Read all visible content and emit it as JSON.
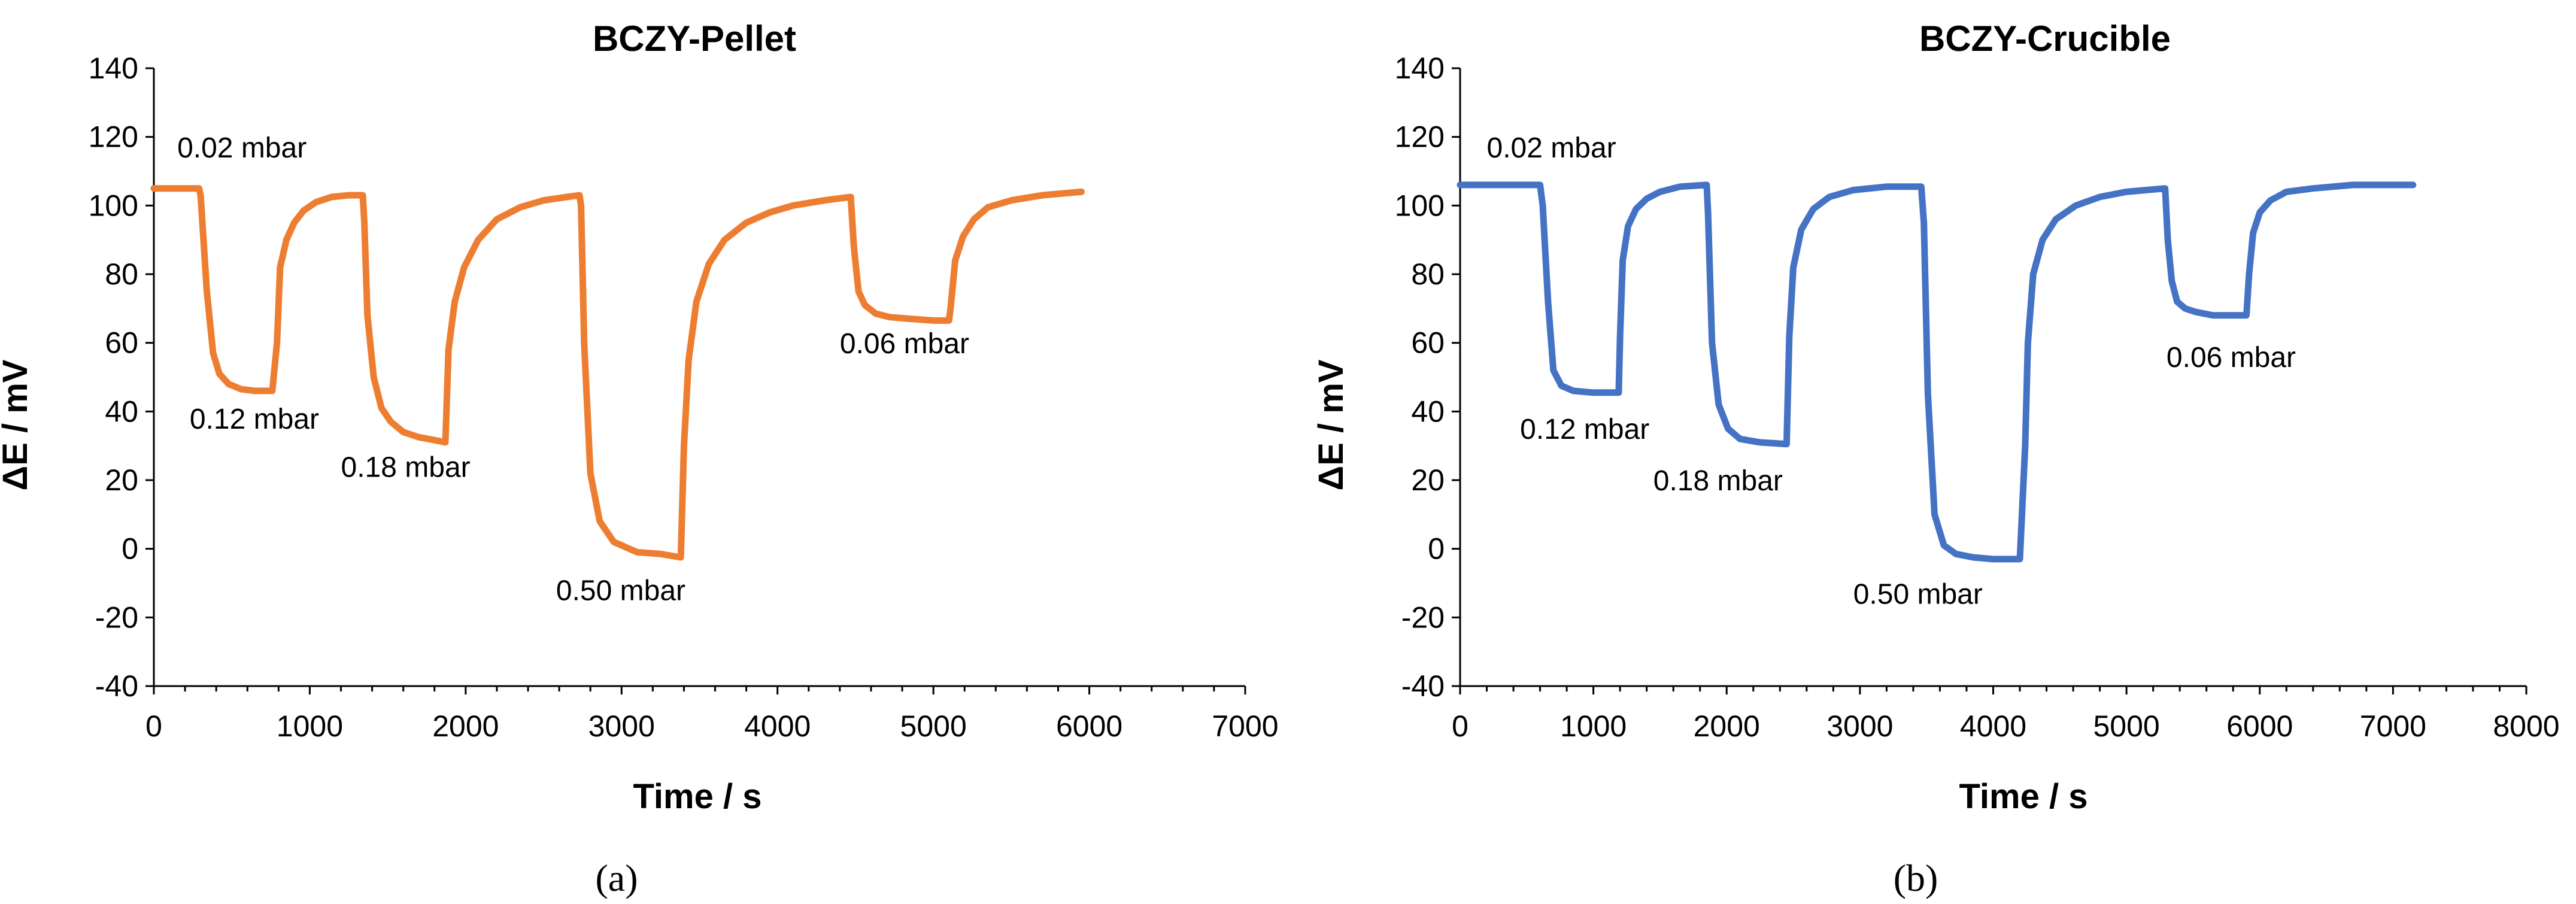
{
  "chart_data": [
    {
      "type": "line",
      "panel_label": "(a)",
      "title": "BCZY-Pellet",
      "xlabel": "Time / s",
      "ylabel": "ΔE / mV",
      "xlim": [
        0,
        7000
      ],
      "ylim": [
        -40,
        140
      ],
      "xticks": [
        0,
        1000,
        2000,
        3000,
        4000,
        5000,
        6000,
        7000
      ],
      "yticks": [
        -40,
        -20,
        0,
        20,
        40,
        60,
        80,
        100,
        120,
        140
      ],
      "grid": false,
      "color": "#ED7D31",
      "series": [
        {
          "name": "BCZY-Pellet",
          "x": [
            0,
            290,
            300,
            340,
            380,
            420,
            480,
            560,
            650,
            760,
            790,
            810,
            850,
            900,
            960,
            1040,
            1140,
            1250,
            1340,
            1350,
            1370,
            1410,
            1460,
            1520,
            1600,
            1700,
            1820,
            1870,
            1890,
            1930,
            1990,
            2080,
            2200,
            2350,
            2500,
            2650,
            2730,
            2740,
            2760,
            2800,
            2860,
            2950,
            3100,
            3250,
            3380,
            3400,
            3430,
            3480,
            3560,
            3660,
            3800,
            3950,
            4100,
            4300,
            4470,
            4490,
            4520,
            4560,
            4630,
            4720,
            4850,
            5000,
            5100,
            5110,
            5140,
            5190,
            5260,
            5350,
            5500,
            5700,
            5950
          ],
          "y": [
            105,
            105,
            103,
            75,
            57,
            51,
            48,
            46.5,
            46,
            46,
            60,
            82,
            90,
            95,
            98.5,
            101,
            102.5,
            103,
            103,
            95,
            68,
            50,
            41,
            37,
            34,
            32.5,
            31.5,
            31,
            58,
            72,
            82,
            90,
            96,
            99.5,
            101.5,
            102.5,
            103,
            100,
            60,
            22,
            8,
            2,
            -1,
            -1.5,
            -2.5,
            30,
            55,
            72,
            83,
            90,
            95,
            98,
            100,
            101.5,
            102.5,
            88,
            75,
            71,
            68.5,
            67.5,
            67,
            66.5,
            66.5,
            70,
            84,
            91,
            96,
            99.5,
            101.5,
            103,
            104
          ]
        }
      ],
      "annotations": [
        {
          "text": "0.02 mbar",
          "x": 150,
          "y": 114
        },
        {
          "text": "0.12 mbar",
          "x": 230,
          "y": 35
        },
        {
          "text": "0.18 mbar",
          "x": 1200,
          "y": 21
        },
        {
          "text": "0.50 mbar",
          "x": 2580,
          "y": -15
        },
        {
          "text": "0.06 mbar",
          "x": 4400,
          "y": 57
        }
      ]
    },
    {
      "type": "line",
      "panel_label": "(b)",
      "title": "BCZY-Crucible",
      "xlabel": "Time / s",
      "ylabel": "ΔE / mV",
      "xlim": [
        0,
        8000
      ],
      "ylim": [
        -40,
        140
      ],
      "xticks": [
        0,
        1000,
        2000,
        3000,
        4000,
        5000,
        6000,
        7000,
        8000
      ],
      "yticks": [
        -40,
        -20,
        0,
        20,
        40,
        60,
        80,
        100,
        120,
        140
      ],
      "grid": false,
      "color": "#4472C4",
      "series": [
        {
          "name": "BCZY-Crucible",
          "x": [
            0,
            600,
            620,
            660,
            700,
            760,
            850,
            1000,
            1190,
            1200,
            1220,
            1260,
            1320,
            1400,
            1500,
            1650,
            1850,
            1860,
            1890,
            1940,
            2010,
            2100,
            2250,
            2450,
            2470,
            2500,
            2560,
            2650,
            2770,
            2950,
            3200,
            3460,
            3480,
            3510,
            3560,
            3630,
            3720,
            3850,
            4000,
            4200,
            4240,
            4260,
            4300,
            4370,
            4470,
            4620,
            4800,
            5000,
            5290,
            5310,
            5340,
            5380,
            5440,
            5520,
            5650,
            5900,
            5920,
            5950,
            6000,
            6080,
            6200,
            6400,
            6700,
            7150
          ],
          "y": [
            106,
            106,
            100,
            72,
            52,
            47.5,
            46,
            45.5,
            45.5,
            62,
            84,
            94,
            99,
            102,
            104,
            105.5,
            106,
            98,
            60,
            42,
            35,
            32,
            31,
            30.5,
            62,
            82,
            93,
            99,
            102.5,
            104.5,
            105.5,
            105.5,
            95,
            45,
            10,
            1,
            -1.5,
            -2.5,
            -3,
            -3,
            30,
            60,
            80,
            90,
            96,
            100,
            102.5,
            104,
            105,
            90,
            78,
            72,
            70,
            69,
            68,
            68,
            80,
            92,
            98,
            101.5,
            104,
            105,
            106,
            106
          ]
        }
      ],
      "annotations": [
        {
          "text": "0.02 mbar",
          "x": 200,
          "y": 114
        },
        {
          "text": "0.12 mbar",
          "x": 450,
          "y": 32
        },
        {
          "text": "0.18 mbar",
          "x": 1450,
          "y": 17
        },
        {
          "text": "0.50 mbar",
          "x": 2950,
          "y": -16
        },
        {
          "text": "0.06 mbar",
          "x": 5300,
          "y": 53
        }
      ]
    }
  ]
}
